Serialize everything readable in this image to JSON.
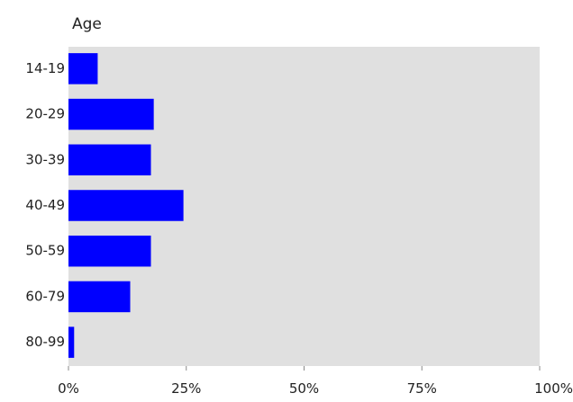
{
  "chart_data": {
    "type": "bar",
    "orientation": "horizontal",
    "title": "Age",
    "xlabel": "",
    "ylabel": "",
    "categories": [
      "14-19",
      "20-29",
      "30-39",
      "40-49",
      "50-59",
      "60-79",
      "80-99"
    ],
    "values": [
      6.2,
      18.1,
      17.5,
      24.4,
      17.5,
      13.1,
      1.2
    ],
    "xlim": [
      0,
      100
    ],
    "x_ticks": [
      "0%",
      "25%",
      "50%",
      "75%",
      "100%"
    ],
    "grid": false,
    "legend": "none",
    "colors": {
      "bar": "#0000ff",
      "plot_background": "#e0e0e0",
      "text": "#222222"
    }
  }
}
